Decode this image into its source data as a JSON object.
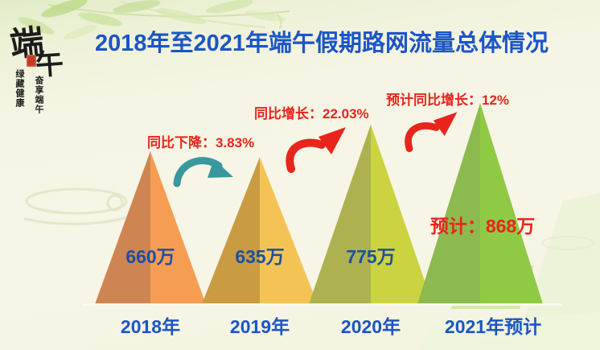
{
  "logo": {
    "main_chars": [
      "端",
      "午"
    ],
    "column_1": "绿藏健康",
    "column_2": "奋享端午"
  },
  "chart_data": {
    "type": "bar",
    "variant": "triangle-mountain-infographic",
    "title": "2018年至2021年端午假期路网流量总体情况",
    "unit": "万",
    "categories": [
      "2018年",
      "2019年",
      "2020年",
      "2021年预计"
    ],
    "values": [
      660,
      635,
      775,
      868
    ],
    "value_labels": [
      "660万",
      "635万",
      "775万",
      "预计：868万"
    ],
    "annotations": [
      {
        "text": "同比下降：3.83%",
        "direction": "down",
        "applies_to": "2019年"
      },
      {
        "text": "同比增长：22.03%",
        "direction": "up",
        "applies_to": "2020年"
      },
      {
        "text": "预计同比增长：12%",
        "direction": "up",
        "applies_to": "2021年预计"
      }
    ],
    "colors": [
      {
        "left": "#ce8551",
        "right": "#f59d53"
      },
      {
        "left": "#c99b43",
        "right": "#f3c455"
      },
      {
        "left": "#aeb150",
        "right": "#cbd340"
      },
      {
        "left": "#8cba4f",
        "right": "#90ca44"
      }
    ],
    "accent_colors": {
      "title_blue": "#1b55c6",
      "value_blue": "#1d4fa2",
      "annotation_red": "#e8251d",
      "down_arrow_teal": "#38989e"
    },
    "ylim": [
      0,
      868
    ],
    "grid": false,
    "legend": "none"
  }
}
